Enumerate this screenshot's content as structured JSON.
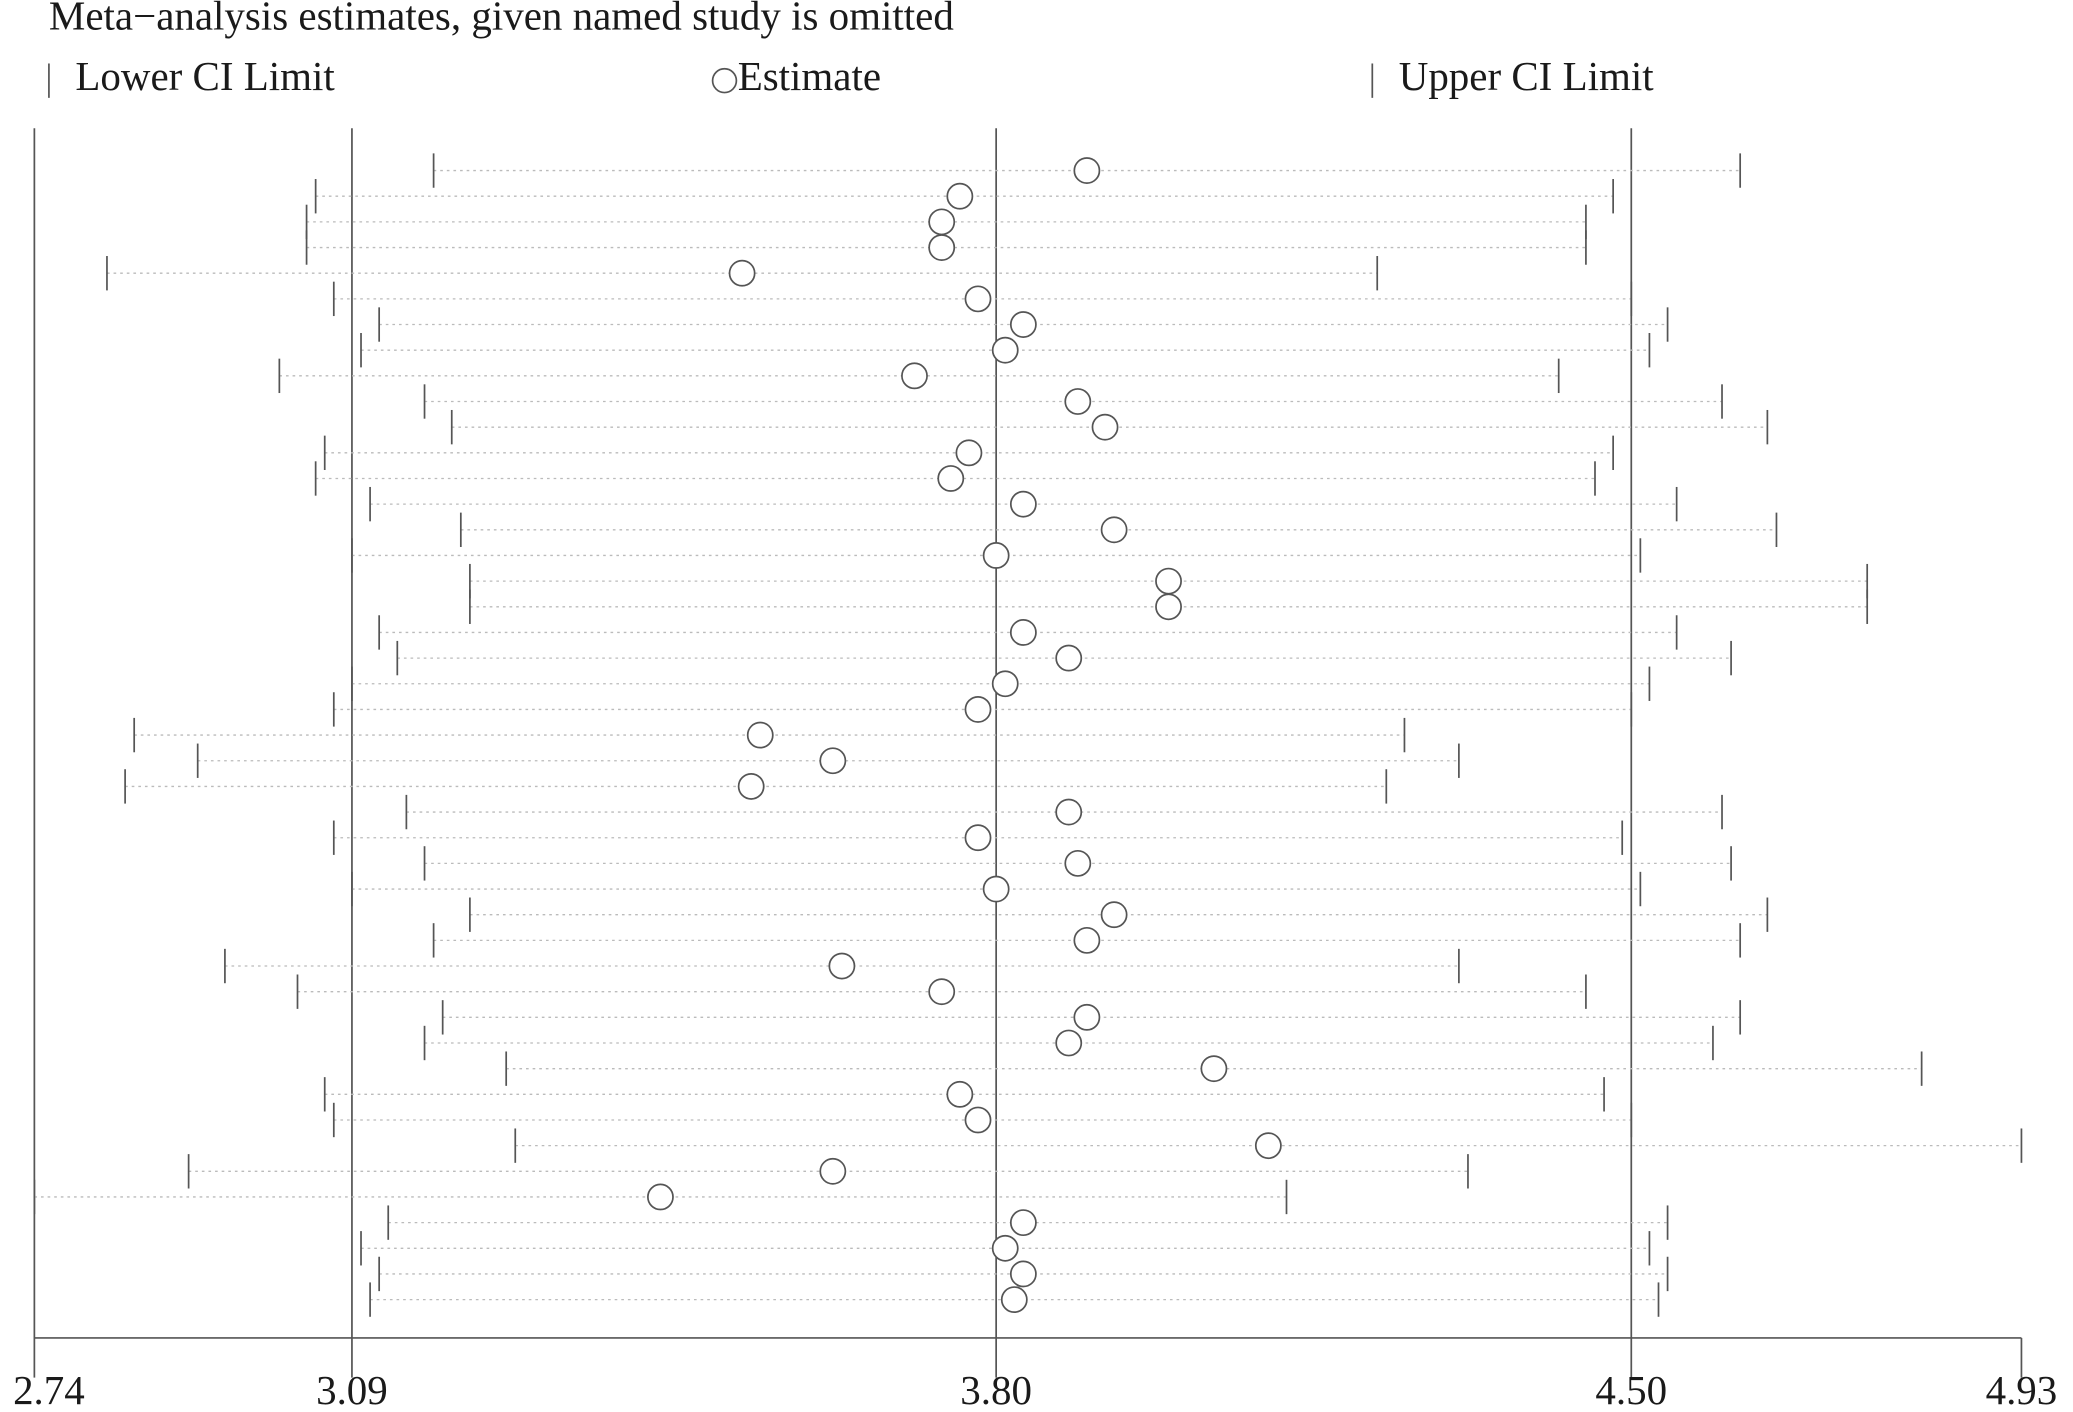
{
  "chart_data": {
    "type": "interval",
    "title": "Meta−analysis estimates, given named study is omitted",
    "xlim": [
      2.74,
      4.93
    ],
    "xticks": [
      2.74,
      3.09,
      {
        "value": 3.8,
        "label": "3.80"
      },
      {
        "value": 4.5,
        "label": "4.50"
      },
      4.93
    ],
    "reference_lines": [
      3.09,
      3.8,
      4.5
    ],
    "series": [
      {
        "name": "Lower CI Limit",
        "marker": "bar",
        "color": "#555555",
        "values": [
          3.18,
          3.05,
          3.04,
          3.04,
          2.82,
          3.07,
          3.12,
          3.1,
          3.01,
          3.17,
          3.2,
          3.06,
          3.05,
          3.11,
          3.21,
          3.09,
          3.22,
          3.22,
          3.12,
          3.14,
          3.09,
          3.07,
          2.85,
          2.92,
          2.84,
          3.15,
          3.07,
          3.17,
          3.09,
          3.22,
          3.18,
          2.95,
          3.03,
          3.19,
          3.17,
          3.26,
          3.06,
          3.07,
          3.27,
          2.91,
          2.74,
          3.13,
          3.1,
          3.12,
          3.11
        ]
      },
      {
        "name": "Estimate",
        "marker": "circle",
        "color": "#555555",
        "values": [
          3.9,
          3.76,
          3.74,
          3.74,
          3.52,
          3.78,
          3.83,
          3.81,
          3.71,
          3.89,
          3.92,
          3.77,
          3.75,
          3.83,
          3.93,
          3.8,
          3.99,
          3.99,
          3.83,
          3.88,
          3.81,
          3.78,
          3.54,
          3.62,
          3.53,
          3.88,
          3.78,
          3.89,
          3.8,
          3.93,
          3.9,
          3.63,
          3.74,
          3.9,
          3.88,
          4.04,
          3.76,
          3.78,
          4.1,
          3.62,
          3.43,
          3.83,
          3.81,
          3.83,
          3.82
        ]
      },
      {
        "name": "Upper CI Limit",
        "marker": "bar",
        "color": "#555555",
        "values": [
          4.62,
          4.48,
          4.45,
          4.45,
          4.22,
          4.5,
          4.54,
          4.52,
          4.42,
          4.6,
          4.65,
          4.48,
          4.46,
          4.55,
          4.66,
          4.51,
          4.76,
          4.76,
          4.55,
          4.61,
          4.52,
          4.5,
          4.25,
          4.31,
          4.23,
          4.6,
          4.49,
          4.61,
          4.51,
          4.65,
          4.62,
          4.31,
          4.45,
          4.62,
          4.59,
          4.82,
          4.47,
          4.5,
          4.93,
          4.32,
          4.12,
          4.54,
          4.52,
          4.54,
          4.53
        ]
      }
    ]
  }
}
